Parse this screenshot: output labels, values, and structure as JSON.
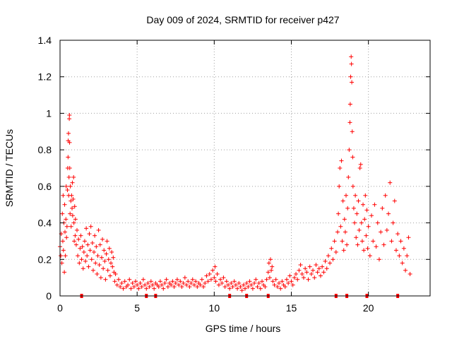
{
  "chart_data": {
    "type": "scatter",
    "title": "Day 009 of 2024, SRMTID for receiver p427",
    "xlabel": "GPS time / hours",
    "ylabel": "SRMTID / TECUs",
    "xlim": [
      0,
      24
    ],
    "ylim": [
      0,
      1.4
    ],
    "xticks": [
      0,
      5,
      10,
      15,
      20
    ],
    "yticks": [
      0,
      0.2,
      0.4,
      0.6,
      0.8,
      1,
      1.2,
      1.4
    ],
    "xtick_labels": [
      "0",
      "5",
      "10",
      "15",
      "20"
    ],
    "ytick_labels": [
      "0",
      "0.2",
      "0.4",
      "0.6",
      "0.8",
      "1",
      "1.2",
      "1.4"
    ],
    "grid": true,
    "marker": "+",
    "color": "#ff0000",
    "series": [
      {
        "name": "SRMTID",
        "points": [
          [
            0.0,
            0.27
          ],
          [
            0.05,
            0.22
          ],
          [
            0.08,
            0.34
          ],
          [
            0.12,
            0.18
          ],
          [
            0.15,
            0.45
          ],
          [
            0.18,
            0.3
          ],
          [
            0.2,
            0.55
          ],
          [
            0.22,
            0.25
          ],
          [
            0.25,
            0.4
          ],
          [
            0.28,
            0.13
          ],
          [
            0.3,
            0.5
          ],
          [
            0.32,
            0.35
          ],
          [
            0.35,
            0.22
          ],
          [
            0.38,
            0.42
          ],
          [
            0.4,
            0.6
          ],
          [
            0.42,
            0.32
          ],
          [
            0.45,
            0.38
          ],
          [
            0.48,
            0.58
          ],
          [
            0.5,
            0.7
          ],
          [
            0.52,
            0.76
          ],
          [
            0.53,
            0.85
          ],
          [
            0.55,
            0.89
          ],
          [
            0.56,
            0.55
          ],
          [
            0.58,
            0.65
          ],
          [
            0.6,
            0.97
          ],
          [
            0.61,
            0.99
          ],
          [
            0.62,
            0.84
          ],
          [
            0.63,
            0.7
          ],
          [
            0.65,
            0.45
          ],
          [
            0.67,
            0.6
          ],
          [
            0.7,
            0.52
          ],
          [
            0.72,
            0.38
          ],
          [
            0.75,
            0.55
          ],
          [
            0.78,
            0.48
          ],
          [
            0.8,
            0.62
          ],
          [
            0.82,
            0.44
          ],
          [
            0.85,
            0.53
          ],
          [
            0.88,
            0.65
          ],
          [
            0.9,
            0.4
          ],
          [
            0.92,
            0.3
          ],
          [
            0.95,
            0.49
          ],
          [
            0.98,
            0.33
          ],
          [
            1.0,
            0.42
          ],
          [
            1.05,
            0.28
          ],
          [
            1.1,
            0.36
          ],
          [
            1.15,
            0.22
          ],
          [
            1.2,
            0.31
          ],
          [
            1.25,
            0.18
          ],
          [
            1.3,
            0.26
          ],
          [
            1.35,
            0.33
          ],
          [
            1.4,
            0.2
          ],
          [
            1.45,
            0.27
          ],
          [
            1.5,
            0.15
          ],
          [
            1.55,
            0.24
          ],
          [
            1.6,
            0.3
          ],
          [
            1.65,
            0.19
          ],
          [
            1.7,
            0.37
          ],
          [
            1.75,
            0.22
          ],
          [
            1.8,
            0.28
          ],
          [
            1.85,
            0.16
          ],
          [
            1.9,
            0.34
          ],
          [
            1.95,
            0.25
          ],
          [
            2.0,
            0.38
          ],
          [
            2.05,
            0.2
          ],
          [
            2.1,
            0.29
          ],
          [
            2.15,
            0.14
          ],
          [
            2.2,
            0.24
          ],
          [
            2.25,
            0.33
          ],
          [
            2.3,
            0.18
          ],
          [
            2.35,
            0.27
          ],
          [
            2.4,
            0.12
          ],
          [
            2.45,
            0.22
          ],
          [
            2.5,
            0.36
          ],
          [
            2.55,
            0.17
          ],
          [
            2.6,
            0.28
          ],
          [
            2.65,
            0.1
          ],
          [
            2.7,
            0.21
          ],
          [
            2.75,
            0.31
          ],
          [
            2.8,
            0.15
          ],
          [
            2.85,
            0.25
          ],
          [
            2.9,
            0.19
          ],
          [
            2.95,
            0.09
          ],
          [
            3.0,
            0.23
          ],
          [
            3.05,
            0.3
          ],
          [
            3.1,
            0.14
          ],
          [
            3.15,
            0.2
          ],
          [
            3.2,
            0.26
          ],
          [
            3.25,
            0.11
          ],
          [
            3.3,
            0.18
          ],
          [
            3.35,
            0.24
          ],
          [
            3.4,
            0.16
          ],
          [
            3.45,
            0.21
          ],
          [
            3.5,
            0.13
          ],
          [
            3.55,
            0.08
          ],
          [
            3.6,
            0.12
          ],
          [
            3.7,
            0.06
          ],
          [
            3.8,
            0.09
          ],
          [
            3.9,
            0.05
          ],
          [
            4.0,
            0.07
          ],
          [
            4.1,
            0.04
          ],
          [
            4.2,
            0.08
          ],
          [
            4.3,
            0.05
          ],
          [
            4.4,
            0.06
          ],
          [
            4.5,
            0.09
          ],
          [
            4.6,
            0.04
          ],
          [
            4.7,
            0.07
          ],
          [
            4.8,
            0.05
          ],
          [
            4.9,
            0.08
          ],
          [
            5.0,
            0.06
          ],
          [
            5.1,
            0.04
          ],
          [
            5.2,
            0.07
          ],
          [
            5.3,
            0.05
          ],
          [
            5.4,
            0.09
          ],
          [
            5.5,
            0.06
          ],
          [
            5.6,
            0.04
          ],
          [
            5.7,
            0.07
          ],
          [
            5.8,
            0.05
          ],
          [
            5.9,
            0.08
          ],
          [
            6.0,
            0.06
          ],
          [
            6.1,
            0.04
          ],
          [
            6.2,
            0.07
          ],
          [
            6.3,
            0.06
          ],
          [
            6.4,
            0.05
          ],
          [
            6.5,
            0.08
          ],
          [
            6.6,
            0.06
          ],
          [
            6.7,
            0.04
          ],
          [
            6.8,
            0.07
          ],
          [
            6.9,
            0.09
          ],
          [
            7.0,
            0.05
          ],
          [
            7.1,
            0.07
          ],
          [
            7.2,
            0.06
          ],
          [
            7.3,
            0.08
          ],
          [
            7.4,
            0.05
          ],
          [
            7.5,
            0.07
          ],
          [
            7.6,
            0.09
          ],
          [
            7.7,
            0.06
          ],
          [
            7.8,
            0.08
          ],
          [
            7.9,
            0.05
          ],
          [
            8.0,
            0.07
          ],
          [
            8.1,
            0.1
          ],
          [
            8.2,
            0.06
          ],
          [
            8.3,
            0.08
          ],
          [
            8.4,
            0.05
          ],
          [
            8.5,
            0.07
          ],
          [
            8.6,
            0.09
          ],
          [
            8.7,
            0.06
          ],
          [
            8.8,
            0.08
          ],
          [
            8.9,
            0.05
          ],
          [
            9.0,
            0.07
          ],
          [
            9.1,
            0.06
          ],
          [
            9.2,
            0.09
          ],
          [
            9.3,
            0.05
          ],
          [
            9.4,
            0.07
          ],
          [
            9.5,
            0.11
          ],
          [
            9.6,
            0.08
          ],
          [
            9.7,
            0.12
          ],
          [
            9.8,
            0.09
          ],
          [
            9.9,
            0.14
          ],
          [
            10.0,
            0.1
          ],
          [
            10.05,
            0.16
          ],
          [
            10.1,
            0.08
          ],
          [
            10.2,
            0.12
          ],
          [
            10.3,
            0.06
          ],
          [
            10.4,
            0.09
          ],
          [
            10.5,
            0.07
          ],
          [
            10.6,
            0.1
          ],
          [
            10.7,
            0.05
          ],
          [
            10.8,
            0.08
          ],
          [
            10.9,
            0.06
          ],
          [
            11.0,
            0.04
          ],
          [
            11.1,
            0.07
          ],
          [
            11.2,
            0.05
          ],
          [
            11.3,
            0.08
          ],
          [
            11.4,
            0.06
          ],
          [
            11.5,
            0.04
          ],
          [
            11.6,
            0.07
          ],
          [
            11.7,
            0.05
          ],
          [
            11.8,
            0.03
          ],
          [
            11.9,
            0.06
          ],
          [
            12.0,
            0.04
          ],
          [
            12.1,
            0.07
          ],
          [
            12.2,
            0.05
          ],
          [
            12.3,
            0.08
          ],
          [
            12.4,
            0.06
          ],
          [
            12.5,
            0.04
          ],
          [
            12.6,
            0.07
          ],
          [
            12.7,
            0.09
          ],
          [
            12.8,
            0.05
          ],
          [
            12.9,
            0.07
          ],
          [
            13.0,
            0.04
          ],
          [
            13.1,
            0.08
          ],
          [
            13.2,
            0.06
          ],
          [
            13.3,
            0.05
          ],
          [
            13.4,
            0.09
          ],
          [
            13.5,
            0.13
          ],
          [
            13.55,
            0.18
          ],
          [
            13.6,
            0.1
          ],
          [
            13.65,
            0.2
          ],
          [
            13.7,
            0.14
          ],
          [
            13.75,
            0.16
          ],
          [
            13.8,
            0.08
          ],
          [
            13.9,
            0.06
          ],
          [
            14.0,
            0.09
          ],
          [
            14.1,
            0.05
          ],
          [
            14.2,
            0.07
          ],
          [
            14.3,
            0.04
          ],
          [
            14.4,
            0.08
          ],
          [
            14.5,
            0.06
          ],
          [
            14.6,
            0.05
          ],
          [
            14.7,
            0.09
          ],
          [
            14.8,
            0.07
          ],
          [
            14.9,
            0.11
          ],
          [
            15.0,
            0.08
          ],
          [
            15.1,
            0.06
          ],
          [
            15.2,
            0.1
          ],
          [
            15.3,
            0.12
          ],
          [
            15.4,
            0.09
          ],
          [
            15.5,
            0.14
          ],
          [
            15.6,
            0.17
          ],
          [
            15.7,
            0.12
          ],
          [
            15.8,
            0.1
          ],
          [
            15.9,
            0.15
          ],
          [
            16.0,
            0.13
          ],
          [
            16.1,
            0.09
          ],
          [
            16.2,
            0.16
          ],
          [
            16.3,
            0.12
          ],
          [
            16.4,
            0.14
          ],
          [
            16.5,
            0.1
          ],
          [
            16.6,
            0.17
          ],
          [
            16.7,
            0.13
          ],
          [
            16.8,
            0.15
          ],
          [
            16.9,
            0.11
          ],
          [
            17.0,
            0.16
          ],
          [
            17.1,
            0.13
          ],
          [
            17.2,
            0.19
          ],
          [
            17.3,
            0.15
          ],
          [
            17.4,
            0.22
          ],
          [
            17.5,
            0.18
          ],
          [
            17.6,
            0.26
          ],
          [
            17.7,
            0.2
          ],
          [
            17.8,
            0.3
          ],
          [
            17.9,
            0.24
          ],
          [
            18.0,
            0.35
          ],
          [
            18.05,
            0.45
          ],
          [
            18.1,
            0.6
          ],
          [
            18.15,
            0.7
          ],
          [
            18.2,
            0.38
          ],
          [
            18.25,
            0.74
          ],
          [
            18.3,
            0.3
          ],
          [
            18.35,
            0.52
          ],
          [
            18.4,
            0.25
          ],
          [
            18.45,
            0.42
          ],
          [
            18.5,
            0.35
          ],
          [
            18.55,
            0.55
          ],
          [
            18.6,
            0.28
          ],
          [
            18.65,
            0.48
          ],
          [
            18.7,
            0.65
          ],
          [
            18.75,
            0.8
          ],
          [
            18.8,
            0.95
          ],
          [
            18.82,
            1.05
          ],
          [
            18.85,
            1.2
          ],
          [
            18.88,
            1.31
          ],
          [
            18.9,
            1.27
          ],
          [
            18.92,
            1.17
          ],
          [
            18.95,
            0.9
          ],
          [
            18.98,
            0.76
          ],
          [
            19.0,
            0.6
          ],
          [
            19.05,
            0.48
          ],
          [
            19.1,
            0.4
          ],
          [
            19.15,
            0.55
          ],
          [
            19.2,
            0.32
          ],
          [
            19.25,
            0.45
          ],
          [
            19.3,
            0.28
          ],
          [
            19.35,
            0.52
          ],
          [
            19.4,
            0.36
          ],
          [
            19.45,
            0.7
          ],
          [
            19.5,
            0.72
          ],
          [
            19.55,
            0.4
          ],
          [
            19.6,
            0.3
          ],
          [
            19.65,
            0.5
          ],
          [
            19.7,
            0.25
          ],
          [
            19.75,
            0.42
          ],
          [
            19.8,
            0.55
          ],
          [
            19.85,
            0.33
          ],
          [
            19.9,
            0.47
          ],
          [
            19.95,
            0.26
          ],
          [
            20.0,
            0.38
          ],
          [
            20.1,
            0.22
          ],
          [
            20.2,
            0.44
          ],
          [
            20.3,
            0.3
          ],
          [
            20.4,
            0.5
          ],
          [
            20.5,
            0.27
          ],
          [
            20.6,
            0.4
          ],
          [
            20.7,
            0.2
          ],
          [
            20.8,
            0.35
          ],
          [
            20.9,
            0.48
          ],
          [
            21.0,
            0.28
          ],
          [
            21.1,
            0.55
          ],
          [
            21.2,
            0.36
          ],
          [
            21.3,
            0.45
          ],
          [
            21.4,
            0.62
          ],
          [
            21.5,
            0.3
          ],
          [
            21.6,
            0.4
          ],
          [
            21.7,
            0.52
          ],
          [
            21.8,
            0.25
          ],
          [
            21.9,
            0.34
          ],
          [
            22.0,
            0.22
          ],
          [
            22.1,
            0.3
          ],
          [
            22.2,
            0.18
          ],
          [
            22.3,
            0.26
          ],
          [
            22.4,
            0.14
          ],
          [
            22.5,
            0.22
          ],
          [
            22.6,
            0.32
          ],
          [
            22.7,
            0.12
          ]
        ]
      }
    ],
    "flag_markers_x": [
      1.4,
      5.6,
      6.2,
      11.0,
      12.1,
      13.5,
      17.9,
      18.6,
      19.9,
      21.9
    ]
  }
}
